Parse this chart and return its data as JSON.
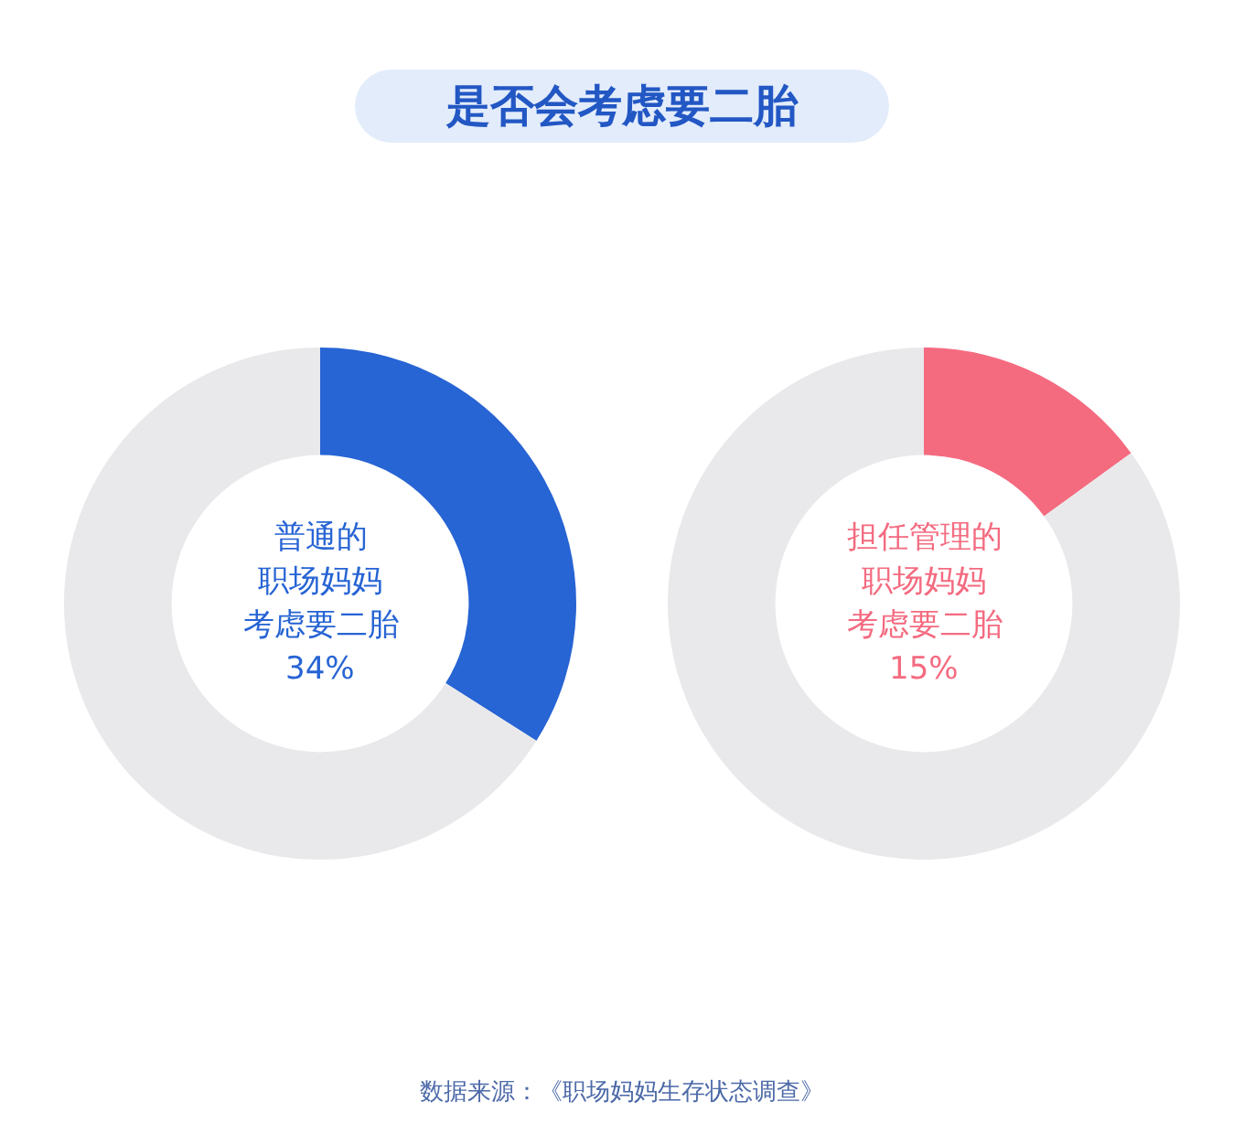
{
  "chart_data": [
    {
      "type": "donut",
      "title": "是否会考虑要二胎",
      "categories": [
        null,
        null
      ],
      "values": [
        34,
        66
      ],
      "colors": [
        "#2764d4",
        "#e9e9eb"
      ],
      "annotations": [
        "普通的",
        "职场妈妈",
        "考虑要二胎",
        "34%"
      ]
    },
    {
      "type": "donut",
      "categories": [
        null,
        null
      ],
      "values": [
        15,
        85
      ],
      "colors": [
        "#f46b80",
        "#e9e9eb"
      ],
      "annotations": [
        "担任管理的",
        "职场妈妈",
        "考虑要二胎",
        "15%",
        "数据来源：《职场妈妈生存状态调查》"
      ]
    }
  ]
}
